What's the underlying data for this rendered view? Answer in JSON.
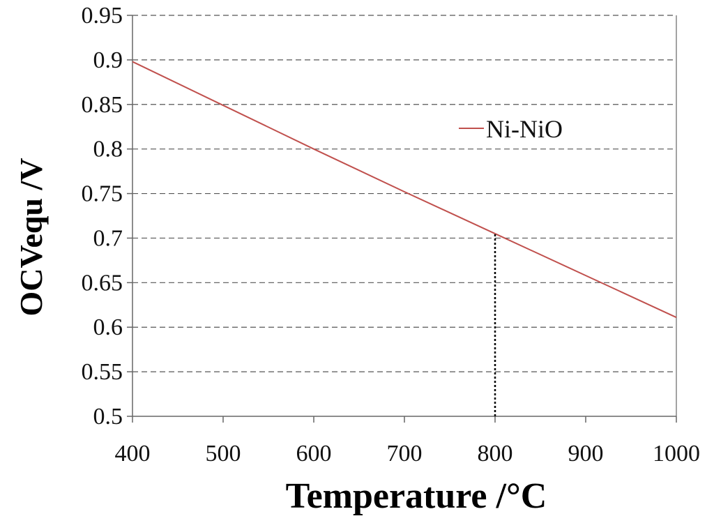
{
  "chart_data": {
    "type": "line",
    "xlabel": "Temperature /°C",
    "ylabel": "OCVequ /V",
    "xlim": [
      400,
      1000
    ],
    "ylim": [
      0.5,
      0.95
    ],
    "x_ticks": [
      "400",
      "500",
      "600",
      "700",
      "800",
      "900",
      "1000"
    ],
    "y_ticks": [
      "0.5",
      "0.55",
      "0.6",
      "0.65",
      "0.7",
      "0.75",
      "0.8",
      "0.85",
      "0.9",
      "0.95"
    ],
    "grid": "horizontal dashed",
    "legend_position": "top-right",
    "series": [
      {
        "name": "Ni-NiO",
        "color": "#c0504d",
        "x": [
          400,
          500,
          600,
          700,
          800,
          900,
          1000
        ],
        "y": [
          0.898,
          0.849,
          0.8,
          0.752,
          0.705,
          0.658,
          0.611
        ]
      }
    ],
    "annotations": [
      {
        "type": "vertical-dotted-line",
        "x": 800,
        "y_from": 0.5,
        "y_to": 0.705,
        "color": "#000000"
      }
    ]
  }
}
